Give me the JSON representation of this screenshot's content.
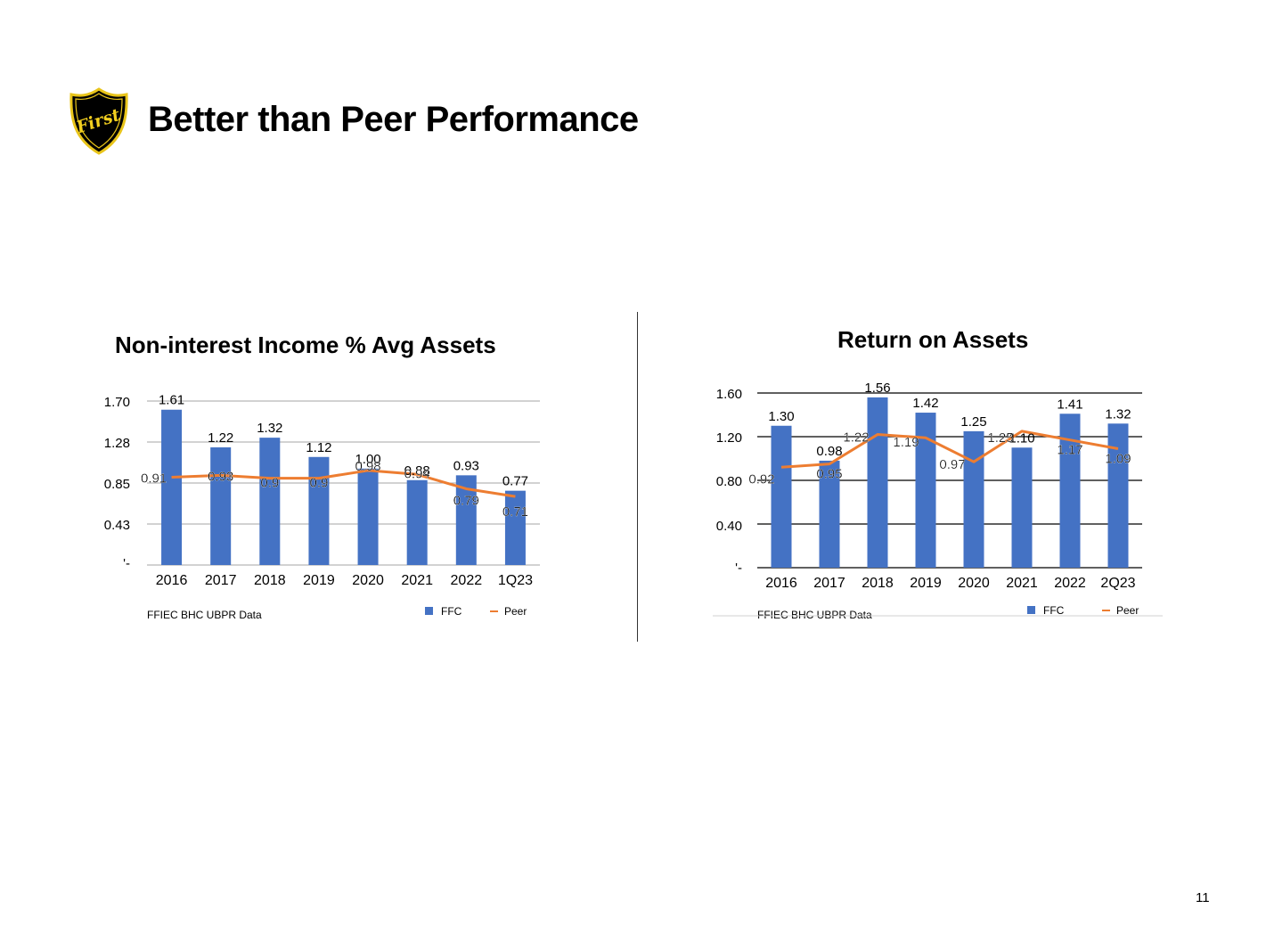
{
  "header": {
    "title": "Better than Peer Performance",
    "logo_text": "First"
  },
  "page_number": "11",
  "colors": {
    "bar": "#4472C4",
    "line": "#ED7D31",
    "grid": "#A6A6A6",
    "grid_dark": "#000000"
  },
  "chart_data": [
    {
      "type": "bar",
      "title": "Non-interest Income % Avg Assets",
      "categories": [
        "2016",
        "2017",
        "2018",
        "2019",
        "2020",
        "2021",
        "2022",
        "1Q23"
      ],
      "y_ticks": [
        "1.70",
        "1.28",
        "0.85",
        "0.43",
        "'-"
      ],
      "ylim": [
        0,
        1.7
      ],
      "series": [
        {
          "name": "FFC",
          "kind": "bar",
          "values": [
            1.61,
            1.22,
            1.32,
            1.12,
            1.0,
            0.88,
            0.93,
            0.77
          ],
          "labels": [
            "1.61",
            "1.22",
            "1.32",
            "1.12",
            "1.00",
            "0.88",
            "0.93",
            "0.77"
          ]
        },
        {
          "name": "Peer",
          "kind": "line",
          "values": [
            0.91,
            0.93,
            0.9,
            0.9,
            0.98,
            0.94,
            0.79,
            0.71
          ],
          "labels": [
            "0.91",
            "0.93",
            "0.9",
            "0.9",
            "0.98",
            "0.94",
            "0.79",
            "0.71"
          ]
        }
      ],
      "source": "FFIEC BHC UBPR Data",
      "legend": [
        "FFC",
        "Peer"
      ]
    },
    {
      "type": "bar",
      "title": "Return on Assets",
      "categories": [
        "2016",
        "2017",
        "2018",
        "2019",
        "2020",
        "2021",
        "2022",
        "2Q23"
      ],
      "y_ticks": [
        "1.60",
        "1.20",
        "0.80",
        "0.40",
        "'-"
      ],
      "ylim": [
        0,
        1.6
      ],
      "series": [
        {
          "name": "FFC",
          "kind": "bar",
          "values": [
            1.3,
            0.98,
            1.56,
            1.42,
            1.25,
            1.1,
            1.41,
            1.32
          ],
          "labels": [
            "1.30",
            "0.98",
            "1.56",
            "1.42",
            "1.25",
            "1.10",
            "1.41",
            "1.32"
          ]
        },
        {
          "name": "Peer",
          "kind": "line",
          "values": [
            0.92,
            0.95,
            1.22,
            1.19,
            0.97,
            1.25,
            1.17,
            1.09
          ],
          "labels": [
            "0.92",
            "0.95",
            "1.22",
            "1.19",
            "0.97",
            "1.25",
            "1.17",
            "1.09"
          ]
        }
      ],
      "source": "FFIEC BHC UBPR Data",
      "legend": [
        "FFC",
        "Peer"
      ]
    }
  ]
}
